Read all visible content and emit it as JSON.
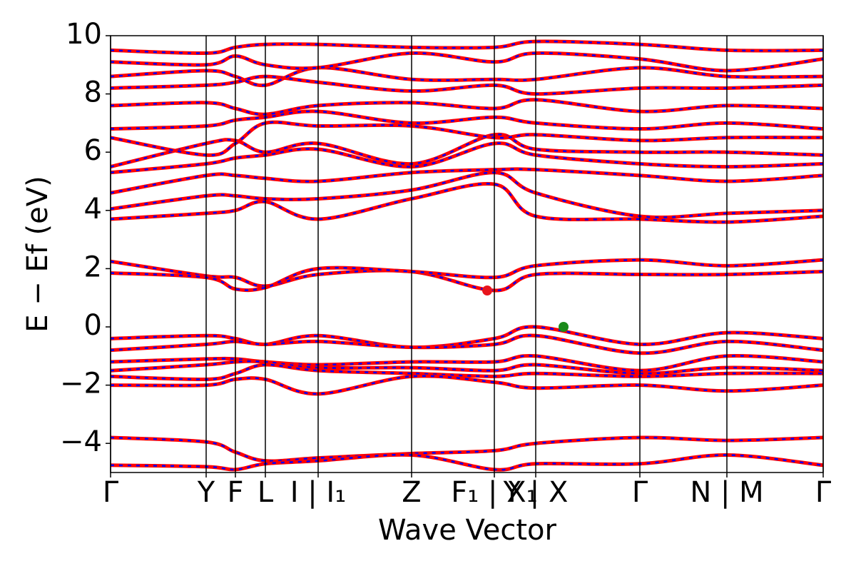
{
  "chart_data": {
    "type": "band",
    "x_label": "Wave Vector",
    "y_label": "E − Ef (eV)",
    "xlim": [
      0,
      9.99
    ],
    "ylim": [
      -5,
      10
    ],
    "xticks": [
      {
        "value": 0,
        "label": "Γ"
      },
      {
        "value": 1.34,
        "label": "Y"
      },
      {
        "value": 1.75,
        "label": "F"
      },
      {
        "value": 2.17,
        "label": "L"
      },
      {
        "value": 2.91,
        "label": "I | I₁"
      },
      {
        "value": 4.22,
        "label": "Z"
      },
      {
        "value": 5.38,
        "label": "F₁ | X₁"
      },
      {
        "value": 5.96,
        "label": "Y | X"
      },
      {
        "value": 7.42,
        "label": "Γ"
      },
      {
        "value": 8.64,
        "label": "N | M"
      },
      {
        "value": 9.99,
        "label": "Γ"
      }
    ],
    "yticks": [
      {
        "value": -4,
        "label": "−4"
      },
      {
        "value": -2,
        "label": "−2"
      },
      0,
      2,
      4,
      6,
      8,
      10
    ],
    "line_color": "#ff0000",
    "dash_color": "#0000ff",
    "x": [
      0,
      1.34,
      1.75,
      2.17,
      2.91,
      4.22,
      5.38,
      5.96,
      7.42,
      8.64,
      9.99
    ],
    "series": [
      {
        "values": [
          2.25,
          1.75,
          1.7,
          1.4,
          1.8,
          1.9,
          1.25,
          1.8,
          1.8,
          1.8,
          1.9
        ]
      },
      {
        "values": [
          1.85,
          1.7,
          1.3,
          1.35,
          2.0,
          1.9,
          1.7,
          2.1,
          2.3,
          2.1,
          2.3
        ]
      },
      {
        "values": [
          -0.4,
          -0.3,
          -0.4,
          -0.6,
          -0.3,
          -0.7,
          -0.4,
          0.0,
          -0.6,
          -0.2,
          -0.4
        ]
      },
      {
        "values": [
          -0.8,
          -0.6,
          -0.5,
          -0.6,
          -0.5,
          -0.7,
          -0.6,
          -0.3,
          -0.9,
          -0.5,
          -0.8
        ]
      },
      {
        "values": [
          -1.2,
          -1.1,
          -1.1,
          -1.2,
          -1.3,
          -1.2,
          -1.2,
          -1.0,
          -1.5,
          -1.0,
          -1.2
        ]
      },
      {
        "values": [
          -1.5,
          -1.3,
          -1.2,
          -1.2,
          -1.4,
          -1.4,
          -1.5,
          -1.3,
          -1.6,
          -1.4,
          -1.5
        ]
      },
      {
        "values": [
          -1.7,
          -1.8,
          -1.6,
          -1.3,
          -1.5,
          -1.6,
          -1.7,
          -1.6,
          -1.7,
          -1.6,
          -1.6
        ]
      },
      {
        "values": [
          -2.0,
          -2.0,
          -1.8,
          -1.8,
          -2.3,
          -1.7,
          -1.9,
          -2.1,
          -2.0,
          -2.2,
          -2.0
        ]
      },
      {
        "values": [
          -3.8,
          -3.95,
          -4.3,
          -4.6,
          -4.5,
          -4.35,
          -4.25,
          -4.0,
          -3.8,
          -3.9,
          -3.8
        ]
      },
      {
        "values": [
          -4.75,
          -4.8,
          -4.9,
          -4.7,
          -4.6,
          -4.4,
          -4.9,
          -4.7,
          -4.7,
          -4.4,
          -4.75
        ]
      },
      {
        "values": [
          3.7,
          3.9,
          4.0,
          4.3,
          3.7,
          4.4,
          4.9,
          3.8,
          3.7,
          3.6,
          3.8
        ]
      },
      {
        "values": [
          4.05,
          4.5,
          4.5,
          4.4,
          4.4,
          4.7,
          5.3,
          4.6,
          3.8,
          3.9,
          4.0
        ]
      },
      {
        "values": [
          4.6,
          5.2,
          5.2,
          5.1,
          5.0,
          5.3,
          5.4,
          5.4,
          5.2,
          5.0,
          5.2
        ]
      },
      {
        "values": [
          5.3,
          5.6,
          5.8,
          5.9,
          6.1,
          5.5,
          6.3,
          5.9,
          5.6,
          5.5,
          5.6
        ]
      },
      {
        "values": [
          5.5,
          6.3,
          6.4,
          6.0,
          6.3,
          5.6,
          6.6,
          6.1,
          6.0,
          6.0,
          5.9
        ]
      },
      {
        "values": [
          6.5,
          5.9,
          6.3,
          7.0,
          6.9,
          6.9,
          6.5,
          6.6,
          6.4,
          6.5,
          6.5
        ]
      },
      {
        "values": [
          6.8,
          6.9,
          7.1,
          7.2,
          7.4,
          7.0,
          7.2,
          7.0,
          6.8,
          7.0,
          6.8
        ]
      },
      {
        "values": [
          7.6,
          7.7,
          7.5,
          7.3,
          7.6,
          7.7,
          7.5,
          7.8,
          7.4,
          7.6,
          7.5
        ]
      },
      {
        "values": [
          8.2,
          8.3,
          8.4,
          8.6,
          8.4,
          8.1,
          8.3,
          8.0,
          8.2,
          8.2,
          8.3
        ]
      },
      {
        "values": [
          8.6,
          8.8,
          8.6,
          8.3,
          8.9,
          8.5,
          8.5,
          8.5,
          8.9,
          8.6,
          8.6
        ]
      },
      {
        "values": [
          9.1,
          9.0,
          9.3,
          9.0,
          8.9,
          9.4,
          9.1,
          9.4,
          9.2,
          8.8,
          9.2
        ]
      },
      {
        "values": [
          9.5,
          9.4,
          9.6,
          9.7,
          9.7,
          9.6,
          9.6,
          9.8,
          9.7,
          9.5,
          9.5
        ]
      }
    ],
    "points": [
      {
        "x": 5.28,
        "y": 1.25,
        "color": "#e8141c"
      },
      {
        "x": 6.35,
        "y": 0,
        "color": "#1a8a1a"
      }
    ]
  }
}
